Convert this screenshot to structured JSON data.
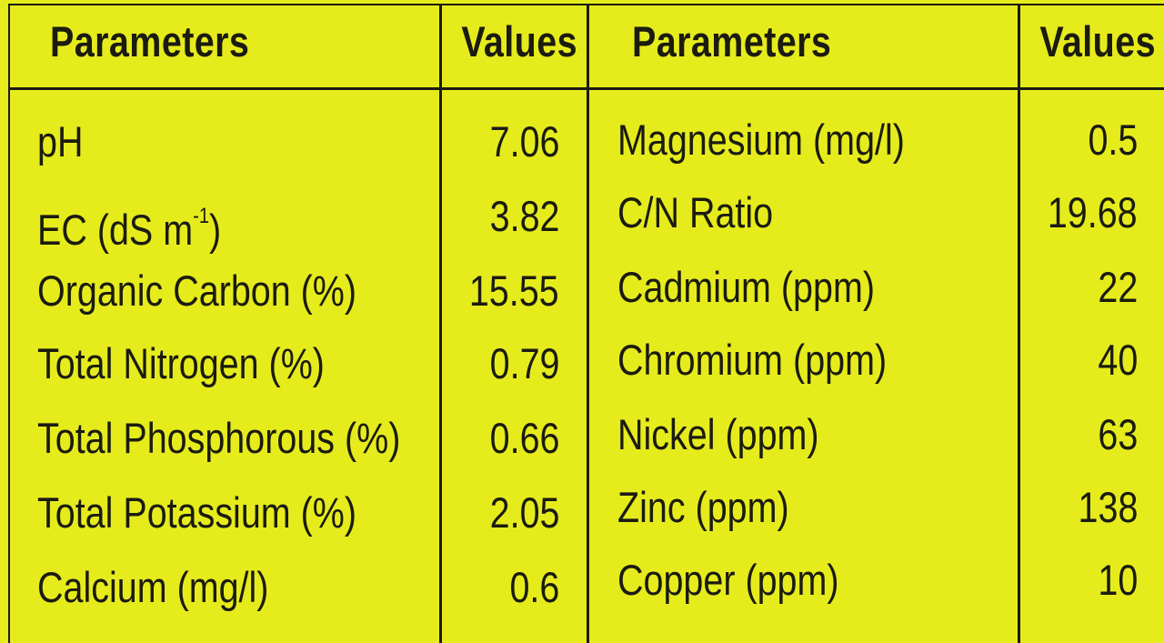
{
  "headers": {
    "left_param": "Parameters",
    "left_value": "Values",
    "right_param": "Parameters",
    "right_value": "Values"
  },
  "left_rows": [
    {
      "param": "pH",
      "value": "7.06"
    },
    {
      "param": "EC (dS m",
      "param_sup": "-1",
      "param_tail": ")",
      "value": "3.82"
    },
    {
      "param": "Organic Carbon (%)",
      "value": "15.55"
    },
    {
      "param": "Total Nitrogen (%)",
      "value": "0.79"
    },
    {
      "param": "Total Phosphorous (%)",
      "value": "0.66"
    },
    {
      "param": "Total Potassium (%)",
      "value": "2.05"
    },
    {
      "param": "Calcium (mg/l)",
      "value": "0.6"
    }
  ],
  "right_rows": [
    {
      "param": "Magnesium (mg/l)",
      "value": "0.5"
    },
    {
      "param": "C/N Ratio",
      "value": "19.68"
    },
    {
      "param": "Cadmium (ppm)",
      "value": "22"
    },
    {
      "param": "Chromium (ppm)",
      "value": "40"
    },
    {
      "param": "Nickel (ppm)",
      "value": "63"
    },
    {
      "param": "Zinc (ppm)",
      "value": "138"
    },
    {
      "param": "Copper (ppm)",
      "value": "10"
    }
  ]
}
